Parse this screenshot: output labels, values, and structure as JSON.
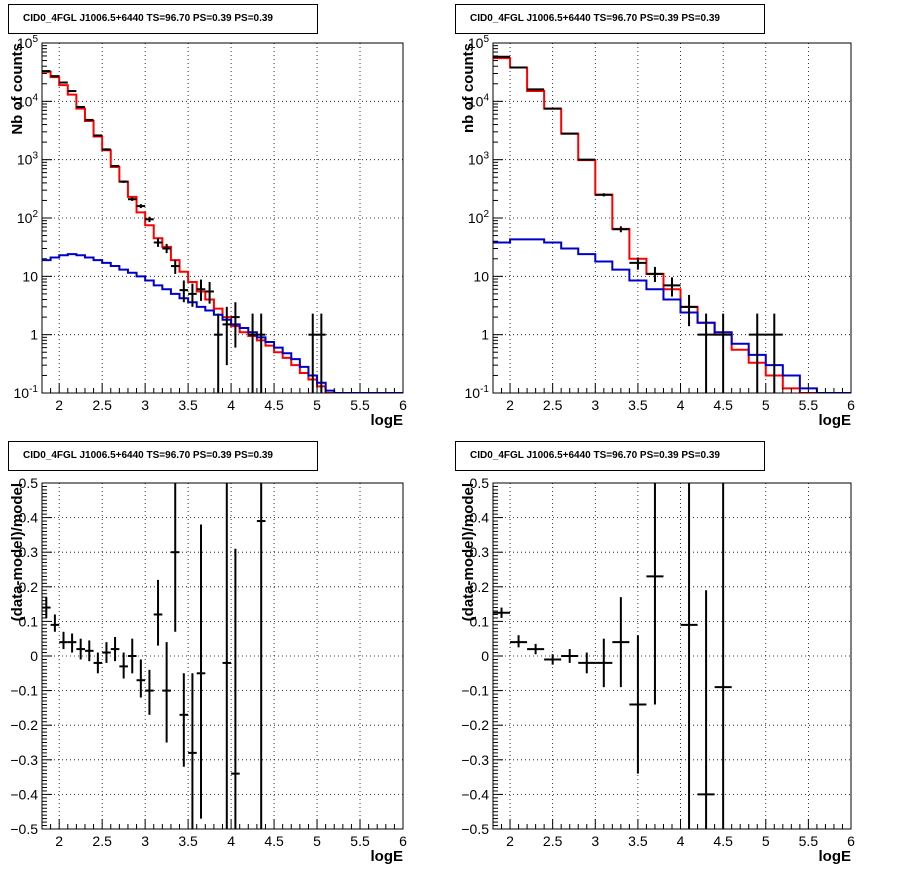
{
  "chart_data": [
    {
      "type": "histogram",
      "title": "CID0_4FGL J1006.5+6440 TS=96.70 PS=0.39 PS=0.39",
      "xlabel": "logE",
      "ylabel": "Nb of counts",
      "xlim": [
        1.8,
        6
      ],
      "ylim": [
        0.1,
        100000
      ],
      "yscale": "log",
      "grid": true,
      "x_ticks": [
        "2",
        "2.5",
        "3",
        "3.5",
        "4",
        "4.5",
        "5",
        "5.5",
        "6"
      ],
      "y_ticks": [
        "10^-1",
        "1",
        "10",
        "10^2",
        "10^3",
        "10^4",
        "10^5"
      ],
      "series": [
        {
          "color": "#ff0000",
          "style": "step",
          "x_edges": [
            1.8,
            1.9,
            2.0,
            2.1,
            2.2,
            2.3,
            2.4,
            2.5,
            2.6,
            2.7,
            2.8,
            2.9,
            3.0,
            3.1,
            3.2,
            3.3,
            3.4,
            3.5,
            3.6,
            3.7,
            3.8,
            3.9,
            4.0,
            4.1,
            4.2,
            4.3,
            4.4,
            4.5,
            4.6,
            4.7,
            4.8,
            4.9,
            5.0,
            5.1,
            5.2,
            5.3,
            5.4,
            5.5,
            5.6,
            5.7,
            5.8,
            5.9,
            6.0
          ],
          "values": [
            32000,
            26000,
            19000,
            13000,
            7500,
            4600,
            2500,
            1450,
            750,
            420,
            230,
            125,
            75,
            45,
            32,
            19,
            12,
            8,
            5.5,
            4,
            2.8,
            2.0,
            1.4,
            1.1,
            0.95,
            0.8,
            0.65,
            0.5,
            0.4,
            0.3,
            0.22,
            0.17,
            0.13,
            0.1,
            0.08,
            0.08,
            0.08,
            0.08,
            0.08,
            0.08,
            0.08,
            0.08
          ]
        },
        {
          "color": "#0000cc",
          "style": "step",
          "x_edges": [
            1.8,
            1.9,
            2.0,
            2.1,
            2.2,
            2.3,
            2.4,
            2.5,
            2.6,
            2.7,
            2.8,
            2.9,
            3.0,
            3.1,
            3.2,
            3.3,
            3.4,
            3.5,
            3.6,
            3.7,
            3.8,
            3.9,
            4.0,
            4.1,
            4.2,
            4.3,
            4.4,
            4.5,
            4.6,
            4.7,
            4.8,
            4.9,
            5.0,
            5.1,
            5.2,
            5.3,
            5.4,
            5.5,
            5.6,
            5.7,
            5.8,
            5.9,
            6.0
          ],
          "values": [
            19,
            21,
            23,
            24,
            23,
            21,
            19,
            17,
            15,
            13,
            11.5,
            10,
            8.5,
            7,
            6,
            5,
            4.2,
            3.6,
            3,
            2.6,
            2.2,
            1.8,
            1.5,
            1.3,
            1.1,
            0.9,
            0.75,
            0.6,
            0.48,
            0.38,
            0.28,
            0.2,
            0.15,
            0.11,
            0.1,
            0.1,
            0.1,
            0.1,
            0.1,
            0.1,
            0.1,
            0.1
          ]
        }
      ],
      "points": [
        {
          "x": 1.85,
          "xerr": 0.05,
          "y": 33000,
          "ylo": 32500,
          "yhi": 33500
        },
        {
          "x": 1.95,
          "xerr": 0.05,
          "y": 27000,
          "ylo": 26500,
          "yhi": 27500
        },
        {
          "x": 2.05,
          "xerr": 0.05,
          "y": 21000,
          "ylo": 20600,
          "yhi": 21400
        },
        {
          "x": 2.15,
          "xerr": 0.05,
          "y": 15000,
          "ylo": 14700,
          "yhi": 15300
        },
        {
          "x": 2.25,
          "xerr": 0.05,
          "y": 8000,
          "ylo": 7800,
          "yhi": 8200
        },
        {
          "x": 2.35,
          "xerr": 0.05,
          "y": 4800,
          "ylo": 4650,
          "yhi": 4950
        },
        {
          "x": 2.45,
          "xerr": 0.05,
          "y": 2600,
          "ylo": 2500,
          "yhi": 2700
        },
        {
          "x": 2.55,
          "xerr": 0.05,
          "y": 1500,
          "ylo": 1440,
          "yhi": 1560
        },
        {
          "x": 2.65,
          "xerr": 0.05,
          "y": 780,
          "ylo": 750,
          "yhi": 810
        },
        {
          "x": 2.75,
          "xerr": 0.05,
          "y": 420,
          "ylo": 400,
          "yhi": 440
        },
        {
          "x": 2.85,
          "xerr": 0.05,
          "y": 210,
          "ylo": 196,
          "yhi": 225
        },
        {
          "x": 2.95,
          "xerr": 0.05,
          "y": 160,
          "ylo": 148,
          "yhi": 173
        },
        {
          "x": 3.05,
          "xerr": 0.05,
          "y": 95,
          "ylo": 85,
          "yhi": 105
        },
        {
          "x": 3.15,
          "xerr": 0.05,
          "y": 38,
          "ylo": 32,
          "yhi": 45
        },
        {
          "x": 3.25,
          "xerr": 0.05,
          "y": 30,
          "ylo": 25,
          "yhi": 36
        },
        {
          "x": 3.35,
          "xerr": 0.05,
          "y": 15,
          "ylo": 11,
          "yhi": 19
        },
        {
          "x": 3.45,
          "xerr": 0.05,
          "y": 5.8,
          "ylo": 3.6,
          "yhi": 8.5
        },
        {
          "x": 3.55,
          "xerr": 0.05,
          "y": 5,
          "ylo": 3,
          "yhi": 7.5
        },
        {
          "x": 3.65,
          "xerr": 0.05,
          "y": 6,
          "ylo": 3.8,
          "yhi": 8.8
        },
        {
          "x": 3.75,
          "xerr": 0.05,
          "y": 5.5,
          "ylo": 3.4,
          "yhi": 8
        },
        {
          "x": 3.85,
          "xerr": 0.05,
          "y": 1,
          "ylo": 0.1,
          "yhi": 2.3
        },
        {
          "x": 3.95,
          "xerr": 0.05,
          "y": 1.5,
          "ylo": 0.3,
          "yhi": 3
        },
        {
          "x": 4.05,
          "xerr": 0.05,
          "y": 2,
          "ylo": 0.6,
          "yhi": 3.6
        },
        {
          "x": 4.25,
          "xerr": 0.05,
          "y": 1,
          "ylo": 0.1,
          "yhi": 2.3
        },
        {
          "x": 4.35,
          "xerr": 0.05,
          "y": 1,
          "ylo": 0.1,
          "yhi": 2.3
        },
        {
          "x": 4.95,
          "xerr": 0.05,
          "y": 1,
          "ylo": 0.1,
          "yhi": 2.3
        },
        {
          "x": 5.05,
          "xerr": 0.05,
          "y": 1,
          "ylo": 0.1,
          "yhi": 2.3
        }
      ]
    },
    {
      "type": "histogram",
      "title": "CID0_4FGL J1006.5+6440 TS=96.70 PS=0.39 PS=0.39",
      "xlabel": "logE",
      "ylabel": "nb of counts",
      "xlim": [
        1.8,
        6
      ],
      "ylim": [
        0.1,
        100000
      ],
      "yscale": "log",
      "grid": true,
      "x_ticks": [
        "2",
        "2.5",
        "3",
        "3.5",
        "4",
        "4.5",
        "5",
        "5.5",
        "6"
      ],
      "y_ticks": [
        "10^-1",
        "1",
        "10",
        "10^2",
        "10^3",
        "10^4",
        "10^5"
      ],
      "series": [
        {
          "color": "#ff0000",
          "style": "step",
          "x_edges": [
            1.8,
            2.0,
            2.2,
            2.4,
            2.6,
            2.8,
            3.0,
            3.2,
            3.4,
            3.6,
            3.8,
            4.0,
            4.2,
            4.4,
            4.6,
            4.8,
            5.0,
            5.2,
            5.4,
            5.6,
            5.8,
            6.0
          ],
          "values": [
            55000,
            38000,
            15000,
            7500,
            2800,
            980,
            250,
            65,
            20,
            11,
            6,
            3,
            1.6,
            1,
            0.55,
            0.33,
            0.2,
            0.12,
            0.1,
            0.1,
            0.1
          ]
        },
        {
          "color": "#0000cc",
          "style": "step",
          "x_edges": [
            1.8,
            2.0,
            2.2,
            2.4,
            2.6,
            2.8,
            3.0,
            3.2,
            3.4,
            3.6,
            3.8,
            4.0,
            4.2,
            4.4,
            4.6,
            4.8,
            5.0,
            5.2,
            5.4,
            5.6,
            5.8,
            6.0
          ],
          "values": [
            38,
            43,
            43,
            38,
            30,
            24,
            18,
            13,
            8.5,
            6,
            4,
            2.4,
            1.6,
            1.1,
            0.7,
            0.45,
            0.3,
            0.2,
            0.12,
            0.1,
            0.1
          ]
        }
      ],
      "points": [
        {
          "x": 1.9,
          "xerr": 0.1,
          "y": 58000,
          "ylo": 57000,
          "yhi": 59000
        },
        {
          "x": 2.1,
          "xerr": 0.1,
          "y": 38000,
          "ylo": 37500,
          "yhi": 38500
        },
        {
          "x": 2.3,
          "xerr": 0.1,
          "y": 16000,
          "ylo": 15700,
          "yhi": 16300
        },
        {
          "x": 2.5,
          "xerr": 0.1,
          "y": 7500,
          "ylo": 7350,
          "yhi": 7650
        },
        {
          "x": 2.7,
          "xerr": 0.1,
          "y": 2800,
          "ylo": 2740,
          "yhi": 2860
        },
        {
          "x": 2.9,
          "xerr": 0.1,
          "y": 1000,
          "ylo": 970,
          "yhi": 1030
        },
        {
          "x": 3.1,
          "xerr": 0.1,
          "y": 250,
          "ylo": 234,
          "yhi": 266
        },
        {
          "x": 3.3,
          "xerr": 0.1,
          "y": 64,
          "ylo": 57,
          "yhi": 72
        },
        {
          "x": 3.5,
          "xerr": 0.1,
          "y": 17,
          "ylo": 13,
          "yhi": 21
        },
        {
          "x": 3.7,
          "xerr": 0.1,
          "y": 11,
          "ylo": 8,
          "yhi": 14.5
        },
        {
          "x": 3.9,
          "xerr": 0.1,
          "y": 7,
          "ylo": 4.5,
          "yhi": 9.6
        },
        {
          "x": 4.1,
          "xerr": 0.1,
          "y": 3,
          "ylo": 1.4,
          "yhi": 4.8
        },
        {
          "x": 4.3,
          "xerr": 0.1,
          "y": 1,
          "ylo": 0.1,
          "yhi": 2.3
        },
        {
          "x": 4.5,
          "xerr": 0.1,
          "y": 1,
          "ylo": 0.1,
          "yhi": 2.3
        },
        {
          "x": 4.9,
          "xerr": 0.1,
          "y": 1,
          "ylo": 0.1,
          "yhi": 2.3
        },
        {
          "x": 5.1,
          "xerr": 0.1,
          "y": 1,
          "ylo": 0.1,
          "yhi": 2.3
        }
      ]
    },
    {
      "type": "scatter",
      "title": "CID0_4FGL J1006.5+6440 TS=96.70 PS=0.39 PS=0.39",
      "xlabel": "logE",
      "ylabel": "(data-model)/model",
      "xlim": [
        1.8,
        6
      ],
      "ylim": [
        -0.5,
        0.5
      ],
      "grid": true,
      "x_ticks": [
        "2",
        "2.5",
        "3",
        "3.5",
        "4",
        "4.5",
        "5",
        "5.5",
        "6"
      ],
      "y_ticks": [
        "−0.5",
        "−0.4",
        "−0.3",
        "−0.2",
        "−0.1",
        "0",
        "0.1",
        "0.2",
        "0.3",
        "0.4",
        "0.5"
      ],
      "points": [
        {
          "x": 1.85,
          "xerr": 0.05,
          "y": 0.14,
          "ylo": 0.11,
          "yhi": 0.17
        },
        {
          "x": 1.95,
          "xerr": 0.05,
          "y": 0.09,
          "ylo": 0.07,
          "yhi": 0.12
        },
        {
          "x": 2.05,
          "xerr": 0.05,
          "y": 0.04,
          "ylo": 0.02,
          "yhi": 0.07
        },
        {
          "x": 2.15,
          "xerr": 0.05,
          "y": 0.04,
          "ylo": 0.01,
          "yhi": 0.065
        },
        {
          "x": 2.25,
          "xerr": 0.05,
          "y": 0.02,
          "ylo": -0.01,
          "yhi": 0.05
        },
        {
          "x": 2.35,
          "xerr": 0.05,
          "y": 0.015,
          "ylo": -0.015,
          "yhi": 0.045
        },
        {
          "x": 2.45,
          "xerr": 0.05,
          "y": -0.02,
          "ylo": -0.05,
          "yhi": 0.01
        },
        {
          "x": 2.55,
          "xerr": 0.05,
          "y": 0.01,
          "ylo": -0.02,
          "yhi": 0.04
        },
        {
          "x": 2.65,
          "xerr": 0.05,
          "y": 0.02,
          "ylo": -0.015,
          "yhi": 0.055
        },
        {
          "x": 2.75,
          "xerr": 0.05,
          "y": -0.03,
          "ylo": -0.065,
          "yhi": 0.01
        },
        {
          "x": 2.85,
          "xerr": 0.05,
          "y": 0,
          "ylo": -0.05,
          "yhi": 0.05
        },
        {
          "x": 2.95,
          "xerr": 0.05,
          "y": -0.07,
          "ylo": -0.12,
          "yhi": -0.01
        },
        {
          "x": 3.05,
          "xerr": 0.05,
          "y": -0.1,
          "ylo": -0.17,
          "yhi": -0.04
        },
        {
          "x": 3.15,
          "xerr": 0.05,
          "y": 0.12,
          "ylo": 0.03,
          "yhi": 0.22
        },
        {
          "x": 3.25,
          "xerr": 0.05,
          "y": -0.1,
          "ylo": -0.25,
          "yhi": 0.04
        },
        {
          "x": 3.35,
          "xerr": 0.05,
          "y": 0.3,
          "ylo": 0.07,
          "yhi": 0.5
        },
        {
          "x": 3.45,
          "xerr": 0.05,
          "y": -0.17,
          "ylo": -0.32,
          "yhi": -0.05
        },
        {
          "x": 3.55,
          "xerr": 0.05,
          "y": -0.28,
          "ylo": -0.5,
          "yhi": -0.05
        },
        {
          "x": 3.65,
          "xerr": 0.05,
          "y": -0.05,
          "ylo": -0.47,
          "yhi": 0.38
        },
        {
          "x": 3.95,
          "xerr": 0.05,
          "y": -0.02,
          "ylo": -0.5,
          "yhi": 0.5
        },
        {
          "x": 4.05,
          "xerr": 0.05,
          "y": -0.34,
          "ylo": -0.5,
          "yhi": 0.31
        },
        {
          "x": 4.35,
          "xerr": 0.05,
          "y": 0.39,
          "ylo": -0.5,
          "yhi": 0.5
        }
      ]
    },
    {
      "type": "scatter",
      "title": "CID0_4FGL J1006.5+6440 TS=96.70 PS=0.39 PS=0.39",
      "xlabel": "logE",
      "ylabel": "(data-model)/model",
      "xlim": [
        1.8,
        6
      ],
      "ylim": [
        -0.5,
        0.5
      ],
      "grid": true,
      "x_ticks": [
        "2",
        "2.5",
        "3",
        "3.5",
        "4",
        "4.5",
        "5",
        "5.5",
        "6"
      ],
      "y_ticks": [
        "−0.5",
        "−0.4",
        "−0.3",
        "−0.2",
        "−0.1",
        "0",
        "0.1",
        "0.2",
        "0.3",
        "0.4",
        "0.5"
      ],
      "points": [
        {
          "x": 1.9,
          "xerr": 0.1,
          "y": 0.125,
          "ylo": 0.11,
          "yhi": 0.14
        },
        {
          "x": 2.1,
          "xerr": 0.1,
          "y": 0.04,
          "ylo": 0.025,
          "yhi": 0.06
        },
        {
          "x": 2.3,
          "xerr": 0.1,
          "y": 0.02,
          "ylo": 0.005,
          "yhi": 0.035
        },
        {
          "x": 2.5,
          "xerr": 0.1,
          "y": -0.01,
          "ylo": -0.025,
          "yhi": 0.005
        },
        {
          "x": 2.7,
          "xerr": 0.1,
          "y": 0,
          "ylo": -0.02,
          "yhi": 0.02
        },
        {
          "x": 2.9,
          "xerr": 0.1,
          "y": -0.02,
          "ylo": -0.05,
          "yhi": 0.01
        },
        {
          "x": 3.1,
          "xerr": 0.1,
          "y": -0.02,
          "ylo": -0.09,
          "yhi": 0.05
        },
        {
          "x": 3.3,
          "xerr": 0.1,
          "y": 0.04,
          "ylo": -0.09,
          "yhi": 0.17
        },
        {
          "x": 3.5,
          "xerr": 0.1,
          "y": -0.14,
          "ylo": -0.34,
          "yhi": 0.06
        },
        {
          "x": 3.7,
          "xerr": 0.1,
          "y": 0.23,
          "ylo": -0.14,
          "yhi": 0.5
        },
        {
          "x": 4.1,
          "xerr": 0.1,
          "y": 0.09,
          "ylo": -0.5,
          "yhi": 0.5
        },
        {
          "x": 4.3,
          "xerr": 0.1,
          "y": -0.4,
          "ylo": -0.5,
          "yhi": 0.19
        },
        {
          "x": 4.5,
          "xerr": 0.1,
          "y": -0.09,
          "ylo": -0.5,
          "yhi": 0.5
        }
      ]
    }
  ]
}
